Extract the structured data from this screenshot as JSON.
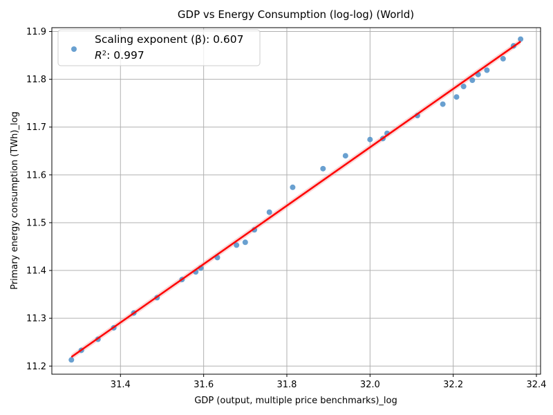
{
  "chart_data": {
    "type": "scatter",
    "title": "GDP vs Energy Consumption (log-log) (World)",
    "xlabel": "GDP (output, multiple price benchmarks)_log",
    "ylabel": "Primary energy consumption (TWh)_log",
    "xlim": [
      31.235,
      32.41
    ],
    "ylim": [
      11.183,
      11.908
    ],
    "xticks": [
      "31.4",
      "31.6",
      "31.8",
      "32.0",
      "32.2",
      "32.4"
    ],
    "yticks": [
      "11.2",
      "11.3",
      "11.4",
      "11.5",
      "11.6",
      "11.7",
      "11.8",
      "11.9"
    ],
    "grid": true,
    "legend_position": "top-left",
    "legend": {
      "line1": "Scaling exponent (β): 0.607",
      "r2_symbol": "R",
      "r2_sup": "2",
      "r2_value": ": 0.997"
    },
    "colors": {
      "points": "#4f8fc8",
      "fit_line": "#ff0000",
      "band": "#f4b0b0",
      "grid": "#b0b0b0"
    },
    "fit": {
      "slope": 0.607,
      "x": [
        31.282,
        32.362
      ],
      "y": [
        11.219,
        11.879
      ]
    },
    "series": [
      {
        "x": [
          31.282,
          31.306,
          31.346,
          31.384,
          31.432,
          31.488,
          31.548,
          31.581,
          31.593,
          31.633,
          31.679,
          31.7,
          31.722,
          31.758,
          31.814,
          31.887,
          31.941,
          32.0,
          32.031,
          32.041,
          32.114,
          32.175,
          32.208,
          32.225,
          32.246,
          32.26,
          32.281,
          32.32,
          32.345,
          32.362
        ],
        "y": [
          11.213,
          11.233,
          11.256,
          11.28,
          11.311,
          11.343,
          11.381,
          11.397,
          11.405,
          11.427,
          11.453,
          11.459,
          11.485,
          11.522,
          11.574,
          11.613,
          11.64,
          11.674,
          11.676,
          11.687,
          11.724,
          11.748,
          11.763,
          11.785,
          11.798,
          11.81,
          11.819,
          11.843,
          11.87,
          11.884
        ]
      }
    ]
  }
}
